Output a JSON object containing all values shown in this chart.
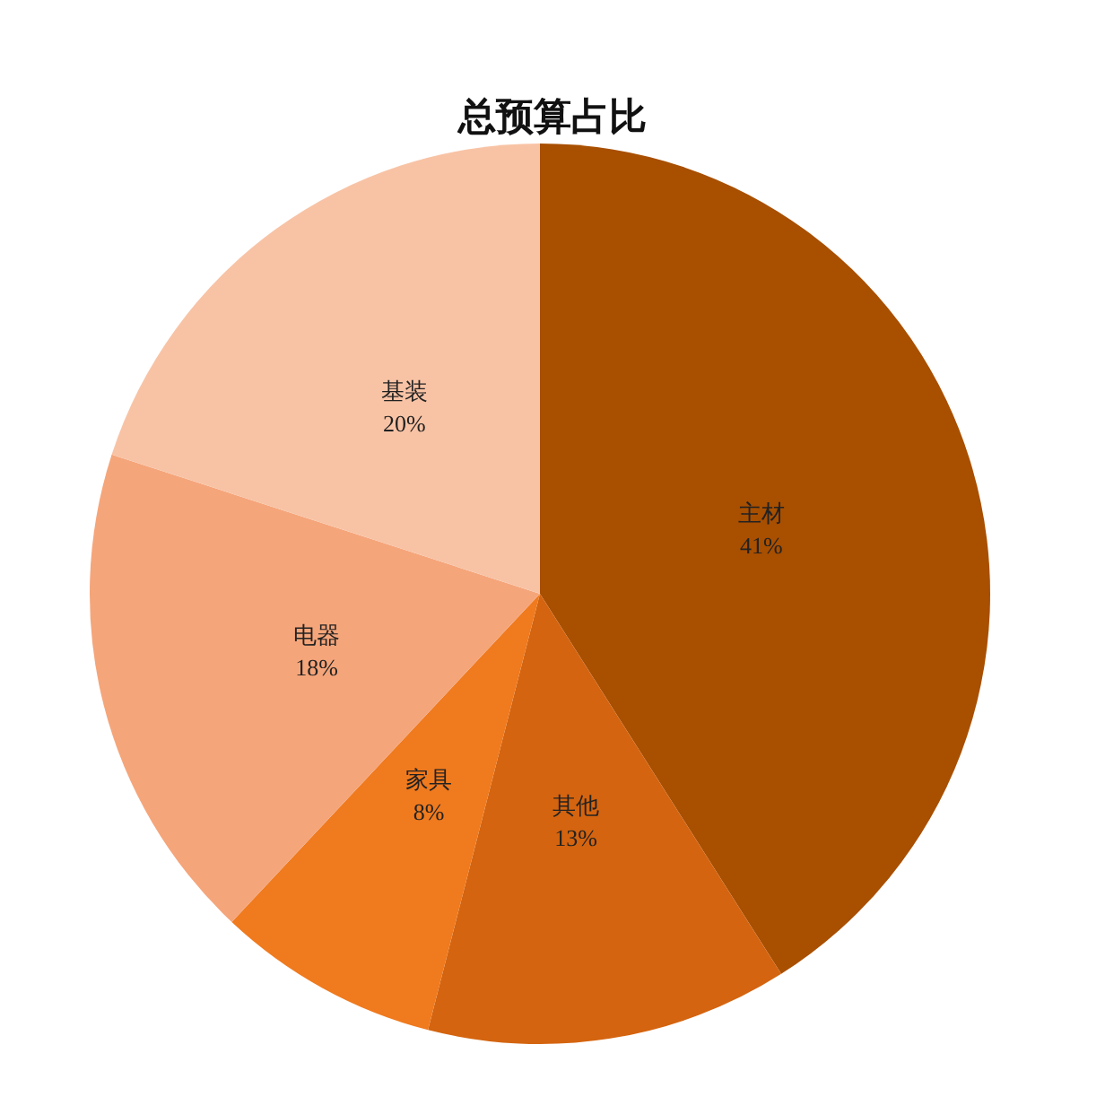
{
  "chart_data": {
    "type": "pie",
    "title": "总预算占比",
    "categories": [
      "主材",
      "其他",
      "家具",
      "电器",
      "基装"
    ],
    "values": [
      41,
      13,
      8,
      18,
      20
    ],
    "colors": [
      "#a84f00",
      "#d4640f",
      "#f07a1e",
      "#f5a57a",
      "#f8c3a5"
    ],
    "value_labels": [
      "41%",
      "13%",
      "8%",
      "18%",
      "20%"
    ],
    "legend": false
  }
}
